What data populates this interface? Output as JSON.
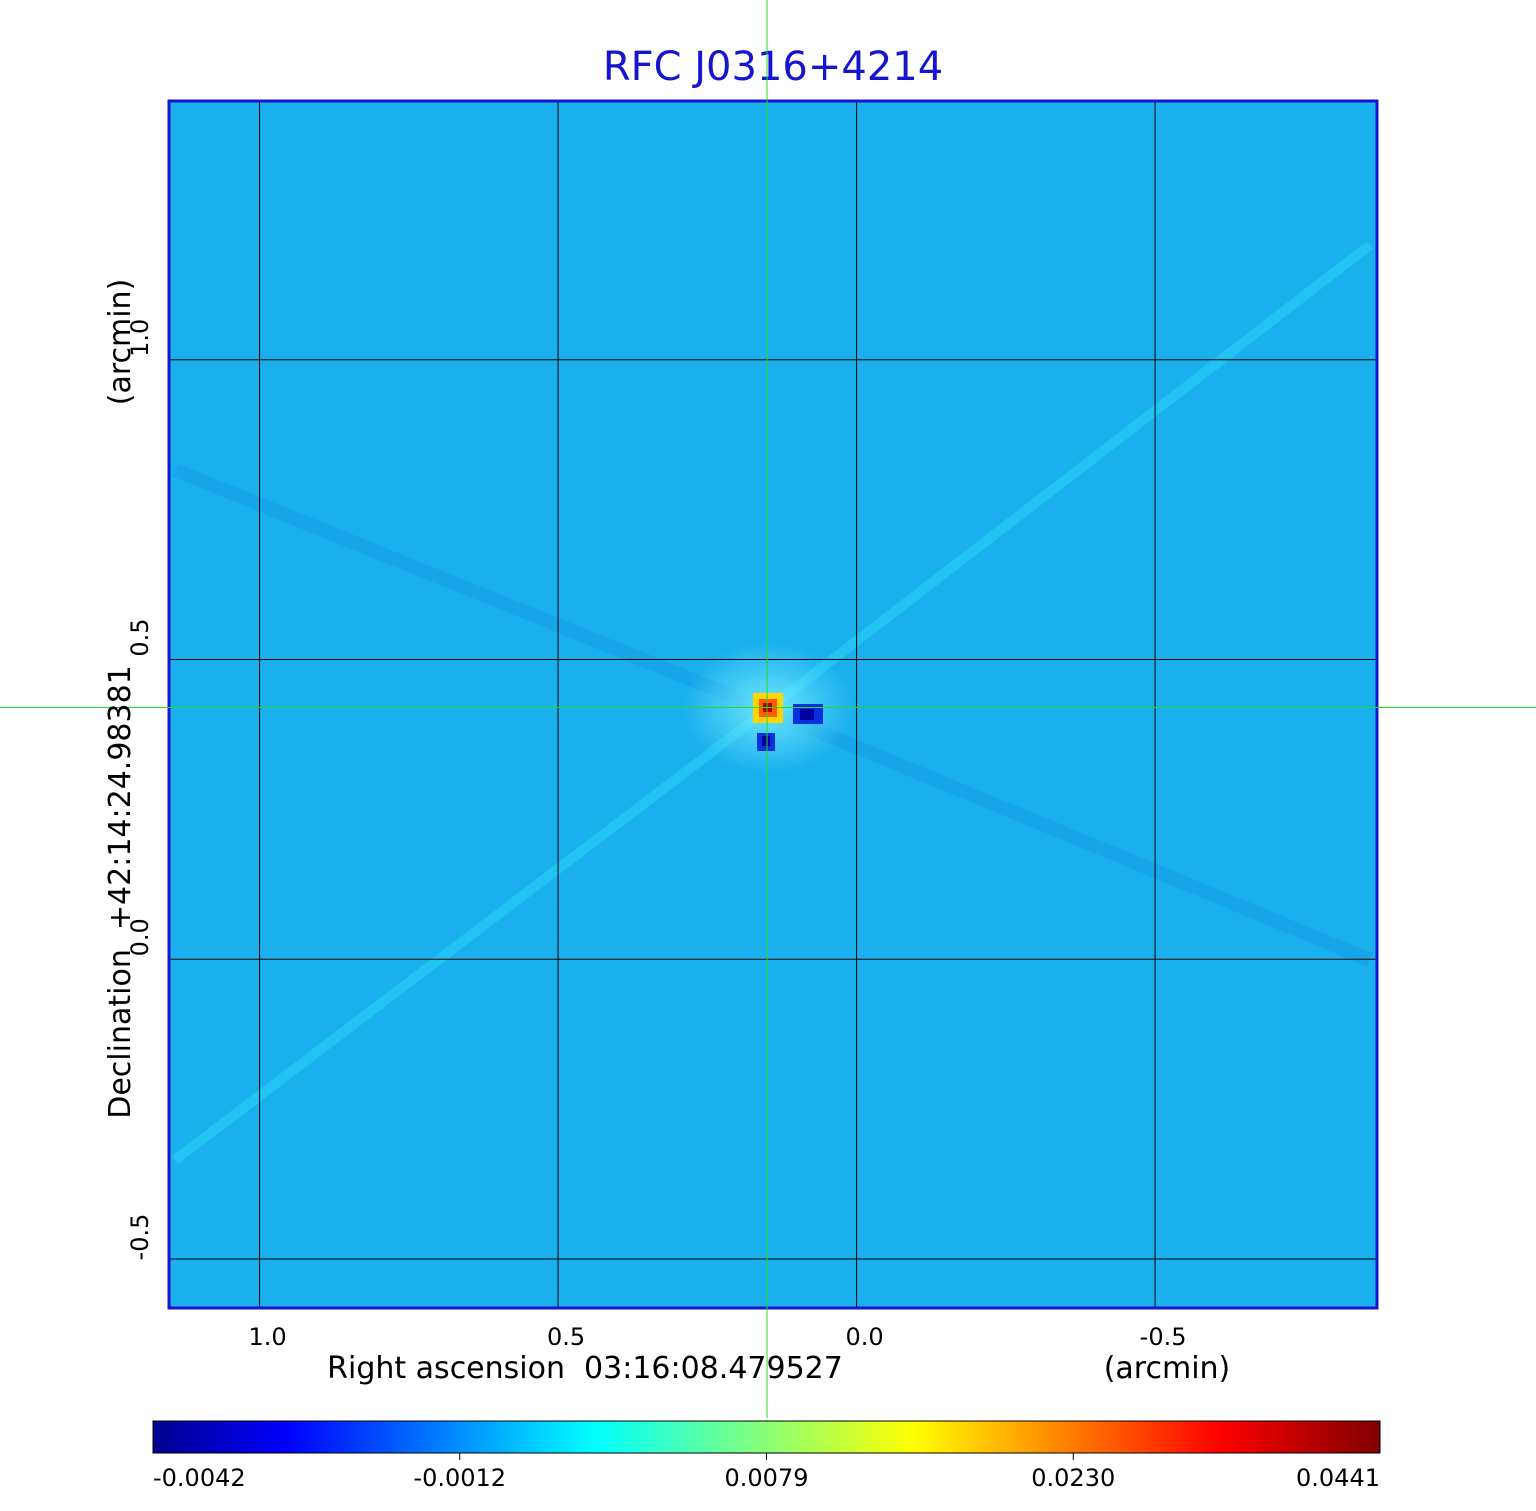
{
  "chart_data": {
    "type": "heatmap",
    "title": "RFC J0316+4214",
    "xlabel": "Right ascension  03:16:08.479527",
    "xunit": "(arcmin)",
    "ylabel": "Declination  +42:14:24.98381",
    "yunit": "(arcmin)",
    "x_ticks": [
      1.0,
      0.5,
      0.0,
      -0.5
    ],
    "x_tick_labels": [
      "1.0",
      "0.5",
      "0.0",
      "-0.5"
    ],
    "y_ticks": [
      1.0,
      0.5,
      0.0,
      -0.5
    ],
    "y_tick_labels": [
      "1.0",
      "0.5",
      "0.0",
      "-0.5"
    ],
    "xlim": [
      1.15,
      -0.87
    ],
    "ylim": [
      -0.58,
      1.43
    ],
    "grid": true,
    "crosshair": {
      "x": 0.15,
      "y": 0.42,
      "color": "#22dd22"
    },
    "colorscale": "jet",
    "colorbar": {
      "min": -0.0042,
      "max": 0.0441,
      "tick_values": [
        -0.0042,
        -0.0012,
        0.0079,
        0.023,
        0.0441
      ],
      "tick_labels": [
        "-0.0042",
        "-0.0012",
        "0.0079",
        "0.0230",
        "0.0441"
      ]
    },
    "background_value": -0.0012,
    "features": [
      {
        "name": "peak",
        "x": 0.15,
        "y": 0.42,
        "value": 0.0441
      },
      {
        "name": "negative-lobe-east",
        "x": 0.08,
        "y": 0.41,
        "value": -0.0042
      },
      {
        "name": "negative-lobe-south",
        "x": 0.15,
        "y": 0.36,
        "value": -0.0042
      }
    ]
  },
  "colors": {
    "title": "#1515d0",
    "frame": "#1515d0",
    "background_field": "#1ab0ee",
    "crosshair": "#22dd22",
    "grid": "#000000"
  }
}
